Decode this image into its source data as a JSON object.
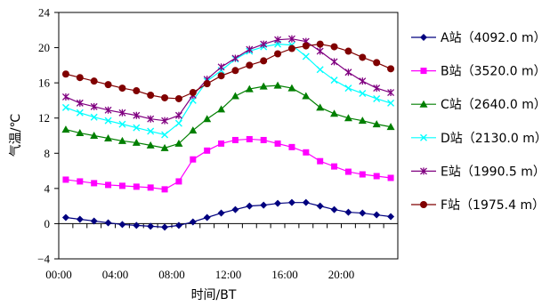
{
  "chart_data": {
    "type": "line",
    "title": "",
    "xlabel": "时间/BT",
    "ylabel": "气温/℃",
    "ylim": [
      -4,
      24
    ],
    "yticks": [
      -4,
      0,
      4,
      8,
      12,
      16,
      20,
      24
    ],
    "ytick_labels": [
      "−4",
      "0",
      "4",
      "8",
      "12",
      "16",
      "20",
      "24"
    ],
    "xlim": [
      0,
      24
    ],
    "xticks": [
      0,
      4,
      8,
      12,
      16,
      20
    ],
    "xtick_labels": [
      "00:00",
      "04:00",
      "08:00",
      "12:00",
      "16:00",
      "20:00"
    ],
    "grid": false,
    "legend": "right",
    "x": [
      0,
      1,
      2,
      3,
      4,
      5,
      6,
      7,
      8,
      9,
      10,
      11,
      12,
      13,
      14,
      15,
      16,
      17,
      18,
      19,
      20,
      21,
      22,
      23
    ],
    "series": [
      {
        "name": "A站（4092.0 m）",
        "color": "#00007f",
        "marker": "diamond",
        "values": [
          0.7,
          0.5,
          0.3,
          0.1,
          -0.1,
          -0.2,
          -0.3,
          -0.4,
          -0.2,
          0.2,
          0.7,
          1.2,
          1.6,
          2.0,
          2.1,
          2.3,
          2.4,
          2.4,
          2.0,
          1.6,
          1.3,
          1.2,
          1.0,
          0.8
        ]
      },
      {
        "name": "B站（3520.0 m）",
        "color": "#ff00ff",
        "marker": "square",
        "values": [
          5.0,
          4.8,
          4.6,
          4.4,
          4.3,
          4.2,
          4.1,
          3.9,
          4.8,
          7.3,
          8.3,
          9.1,
          9.5,
          9.6,
          9.5,
          9.1,
          8.7,
          8.1,
          7.1,
          6.5,
          5.9,
          5.6,
          5.4,
          5.2
        ]
      },
      {
        "name": "C站（2640.0 m）",
        "color": "#007f00",
        "marker": "triangle",
        "values": [
          10.7,
          10.3,
          10.0,
          9.7,
          9.4,
          9.2,
          8.9,
          8.6,
          9.1,
          10.6,
          11.9,
          13.0,
          14.5,
          15.3,
          15.6,
          15.7,
          15.4,
          14.5,
          13.2,
          12.5,
          12.0,
          11.7,
          11.3,
          11.0
        ]
      },
      {
        "name": "D站（2130.0 m）",
        "color": "#00ffff",
        "marker": "x",
        "values": [
          13.2,
          12.6,
          12.1,
          11.7,
          11.3,
          10.9,
          10.5,
          10.1,
          11.4,
          14.0,
          16.2,
          17.4,
          18.7,
          19.6,
          20.1,
          20.4,
          20.3,
          19.0,
          17.5,
          16.3,
          15.4,
          14.8,
          14.2,
          13.7
        ]
      },
      {
        "name": "E站（1990.5 m）",
        "color": "#800080",
        "marker": "star",
        "values": [
          14.4,
          13.7,
          13.3,
          12.9,
          12.6,
          12.3,
          11.9,
          11.7,
          12.3,
          14.6,
          16.4,
          17.8,
          18.8,
          19.8,
          20.4,
          20.9,
          21.0,
          20.7,
          19.6,
          18.4,
          17.2,
          16.2,
          15.4,
          14.9
        ]
      },
      {
        "name": "F站（1975.4 m）",
        "color": "#800000",
        "marker": "circle",
        "values": [
          17.0,
          16.6,
          16.2,
          15.8,
          15.4,
          15.1,
          14.6,
          14.3,
          14.2,
          14.9,
          15.9,
          16.8,
          17.4,
          18.0,
          18.5,
          19.3,
          19.9,
          20.2,
          20.4,
          20.1,
          19.6,
          18.9,
          18.3,
          17.6
        ]
      }
    ]
  }
}
